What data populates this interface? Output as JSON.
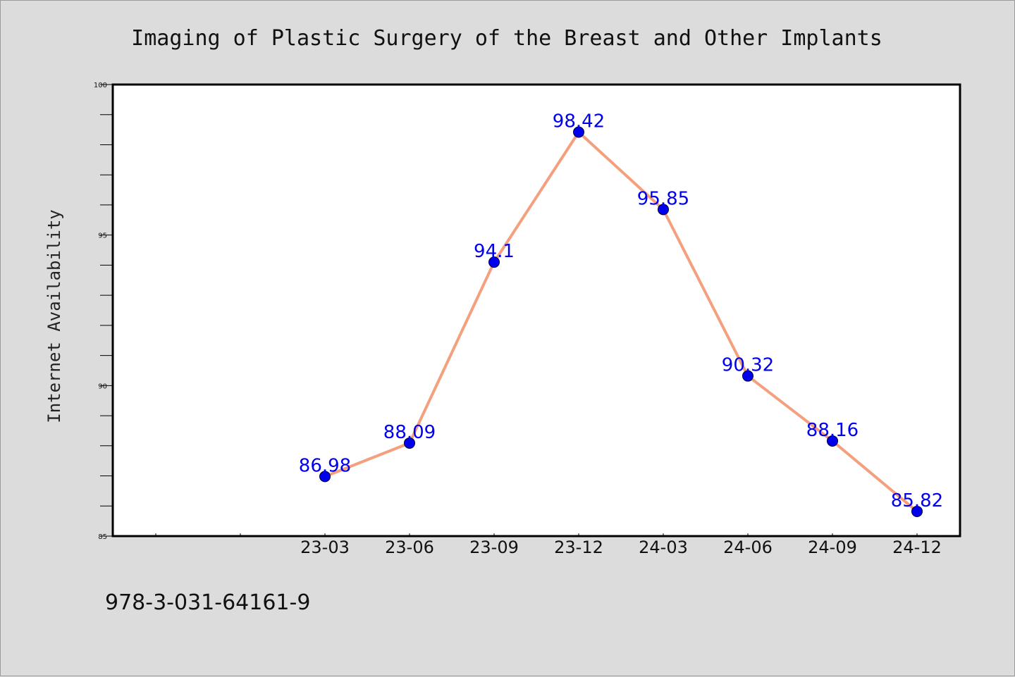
{
  "chart_data": {
    "type": "line",
    "title": "Imaging of Plastic Surgery of the Breast and Other Implants",
    "xlabel": "",
    "ylabel": "Internet Availability",
    "categories": [
      "23-03",
      "23-06",
      "23-09",
      "23-12",
      "24-03",
      "24-06",
      "24-09",
      "24-12"
    ],
    "series": [
      {
        "values": [
          86.98,
          88.09,
          94.1,
          98.42,
          95.85,
          90.32,
          88.16,
          85.82
        ],
        "labels": [
          "86.98",
          "88.09",
          "94.1",
          "98.42",
          "95.85",
          "90.32",
          "88.16",
          "85.82"
        ]
      }
    ],
    "ylim": [
      85,
      100
    ],
    "yticks": [
      "85",
      "90",
      "95",
      "100"
    ],
    "grid": false,
    "legend": "none",
    "colors": {
      "line": "#f4a07e",
      "marker": "#0000ee",
      "data_label": "#0000ee",
      "plot_background": "#ffffff",
      "figure_background": "#dcdcdc"
    }
  },
  "footer": {
    "isbn": "978-3-031-64161-9"
  }
}
